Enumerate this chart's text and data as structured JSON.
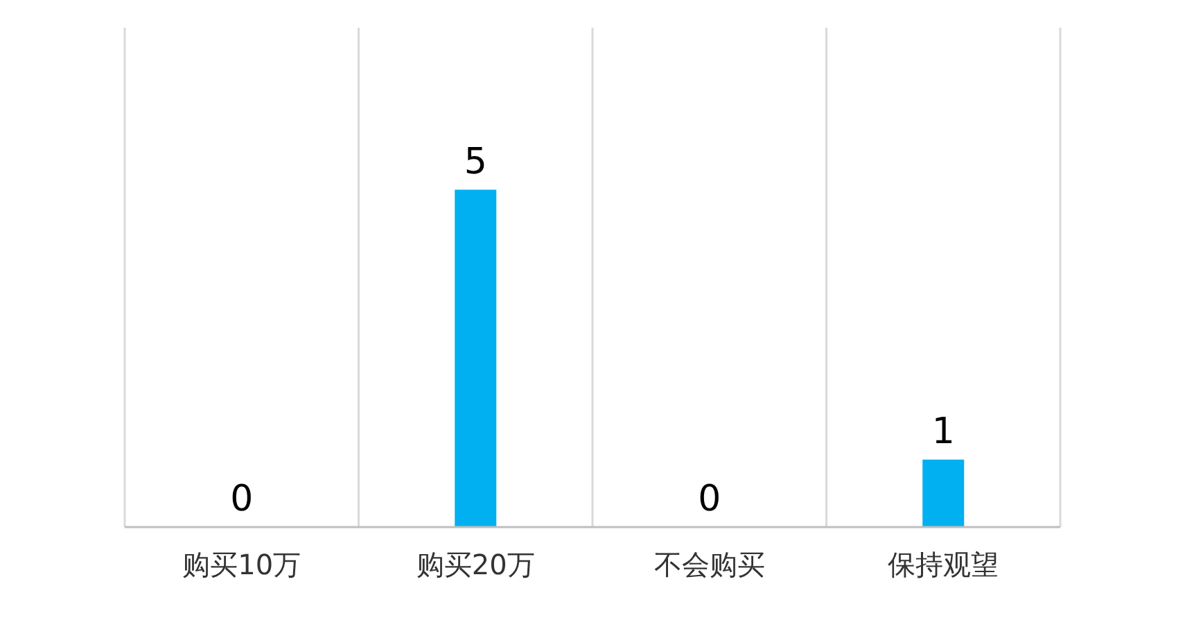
{
  "chart_data": {
    "type": "bar",
    "categories": [
      "购买10万",
      "购买20万",
      "不会购买",
      "保持观望"
    ],
    "values": [
      0,
      5,
      0,
      1
    ],
    "color": "#00b0f0",
    "data_labels": true,
    "grid": "x"
  }
}
